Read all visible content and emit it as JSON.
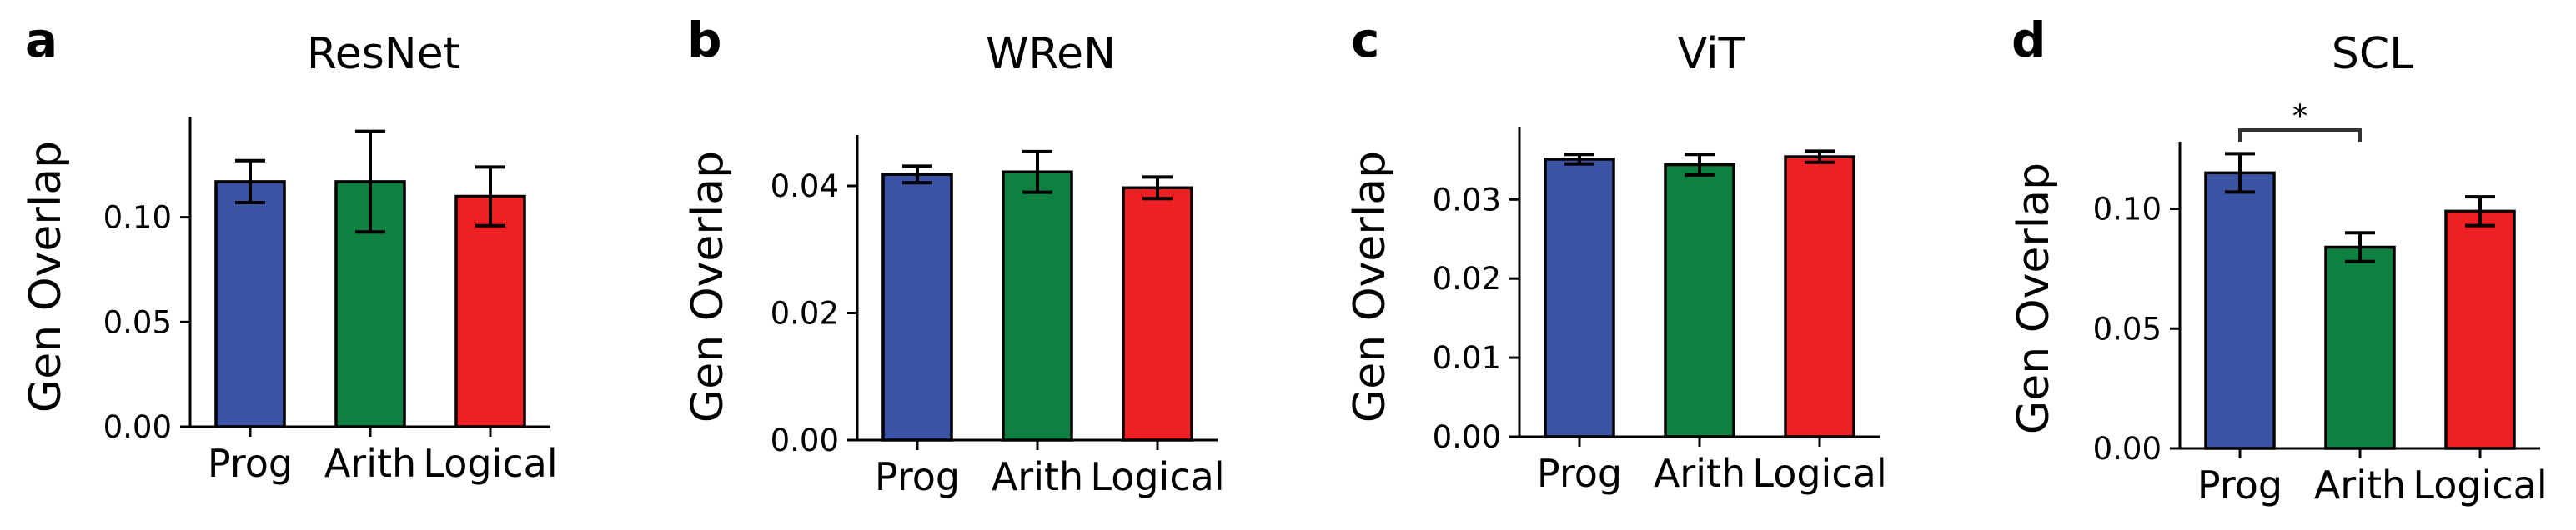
{
  "colors": {
    "prog": "#3a53a4",
    "arith": "#0e8040",
    "logical": "#ee2024",
    "ink": "#000000"
  },
  "chart_data": [
    {
      "type": "bar",
      "letter": "a",
      "title": "ResNet",
      "ylabel": "Gen Overlap",
      "xlabel": "",
      "categories": [
        "Prog",
        "Arith",
        "Logical"
      ],
      "values": [
        0.117,
        0.117,
        0.11
      ],
      "errors": [
        0.01,
        0.024,
        0.014
      ],
      "ylim": [
        0,
        0.148
      ],
      "yticks": [
        0.0,
        0.05,
        0.1
      ],
      "ytick_labels": [
        "0.00",
        "0.05",
        "0.10"
      ],
      "significance": null
    },
    {
      "type": "bar",
      "letter": "b",
      "title": "WReN",
      "ylabel": "Gen Overlap",
      "xlabel": "",
      "categories": [
        "Prog",
        "Arith",
        "Logical"
      ],
      "values": [
        0.0418,
        0.0422,
        0.0397
      ],
      "errors": [
        0.0013,
        0.0032,
        0.0017
      ],
      "ylim": [
        0,
        0.048
      ],
      "yticks": [
        0.0,
        0.02,
        0.04
      ],
      "ytick_labels": [
        "0.00",
        "0.02",
        "0.04"
      ],
      "significance": null
    },
    {
      "type": "bar",
      "letter": "c",
      "title": "ViT",
      "ylabel": "Gen Overlap",
      "xlabel": "",
      "categories": [
        "Prog",
        "Arith",
        "Logical"
      ],
      "values": [
        0.0351,
        0.0344,
        0.0354
      ],
      "errors": [
        0.0006,
        0.0013,
        0.0007
      ],
      "ylim": [
        0,
        0.0392
      ],
      "yticks": [
        0.0,
        0.01,
        0.02,
        0.03
      ],
      "ytick_labels": [
        "0.00",
        "0.01",
        "0.02",
        "0.03"
      ],
      "significance": null
    },
    {
      "type": "bar",
      "letter": "d",
      "title": "SCL",
      "ylabel": "Gen Overlap",
      "xlabel": "",
      "categories": [
        "Prog",
        "Arith",
        "Logical"
      ],
      "values": [
        0.115,
        0.084,
        0.099
      ],
      "errors": [
        0.008,
        0.006,
        0.006
      ],
      "ylim": [
        0,
        0.128
      ],
      "yticks": [
        0.0,
        0.05,
        0.1
      ],
      "ytick_labels": [
        "0.00",
        "0.05",
        "0.10"
      ],
      "significance": {
        "from": 0,
        "to": 1,
        "label": "*"
      }
    }
  ]
}
